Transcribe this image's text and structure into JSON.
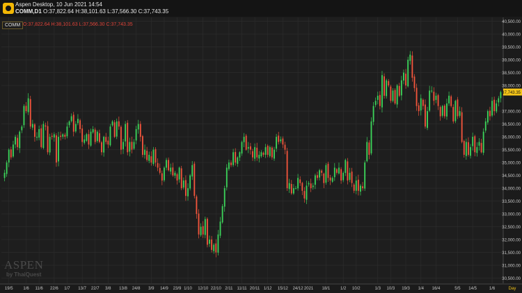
{
  "window": {
    "title": "Aspen Desktop, 10 Jun 2021 14:54",
    "symbol_tf": "COMM,D1",
    "ohlc": "O:37,822.64 H:38,101.63 L:37,566.30 C:37,743.35"
  },
  "badge": {
    "symbol": "COMM",
    "ohlc": "O:37,822.64 H:38,101.63 L:37,566.30 C:37,743.35"
  },
  "watermark": {
    "brand": "ASPEN",
    "by": "by",
    "vendor": "ThaiQuest"
  },
  "colors": {
    "up": "#3cd35a",
    "down": "#f0553c",
    "bg": "#1e1e1e",
    "grid": "#2e2e2e",
    "last": "#f5c518"
  },
  "chart_data": {
    "type": "candlestick",
    "last_price_label": "37,743.35",
    "last_price": 37743.35,
    "ylim": [
      30300,
      40650
    ],
    "y_ticks": [
      {
        "v": 40500,
        "label": "40,500.00"
      },
      {
        "v": 40000,
        "label": "40,000.00"
      },
      {
        "v": 39500,
        "label": "39,500.00"
      },
      {
        "v": 39000,
        "label": "39,000.00"
      },
      {
        "v": 38500,
        "label": "38,500.00"
      },
      {
        "v": 38000,
        "label": "38,000.00"
      },
      {
        "v": 37000,
        "label": "37,000.00"
      },
      {
        "v": 36500,
        "label": "36,500.00"
      },
      {
        "v": 36000,
        "label": "36,000.00"
      },
      {
        "v": 35500,
        "label": "35,500.00"
      },
      {
        "v": 35000,
        "label": "35,000.00"
      },
      {
        "v": 34500,
        "label": "34,500.00"
      },
      {
        "v": 34000,
        "label": "34,000.00"
      },
      {
        "v": 33500,
        "label": "33,500.00"
      },
      {
        "v": 33000,
        "label": "33,000.00"
      },
      {
        "v": 32500,
        "label": "32,500.00"
      },
      {
        "v": 32000,
        "label": "32,000.00"
      },
      {
        "v": 31500,
        "label": "31,500.00"
      },
      {
        "v": 31000,
        "label": "31,000.00"
      },
      {
        "v": 30500,
        "label": "30,500.00"
      }
    ],
    "x_ticks": [
      {
        "label": "19/5",
        "i": 2
      },
      {
        "label": "1/6",
        "i": 10
      },
      {
        "label": "11/6",
        "i": 16
      },
      {
        "label": "22/6",
        "i": 23
      },
      {
        "label": "1/7",
        "i": 29
      },
      {
        "label": "13/7",
        "i": 36
      },
      {
        "label": "22/7",
        "i": 42
      },
      {
        "label": "3/8",
        "i": 48
      },
      {
        "label": "13/8",
        "i": 55
      },
      {
        "label": "24/8",
        "i": 61
      },
      {
        "label": "3/9",
        "i": 68
      },
      {
        "label": "14/9",
        "i": 74
      },
      {
        "label": "23/9",
        "i": 80
      },
      {
        "label": "1/10",
        "i": 85
      },
      {
        "label": "12/10",
        "i": 92
      },
      {
        "label": "22/10",
        "i": 98
      },
      {
        "label": "2/11",
        "i": 104
      },
      {
        "label": "11/11",
        "i": 110
      },
      {
        "label": "20/11",
        "i": 116
      },
      {
        "label": "1/12",
        "i": 122
      },
      {
        "label": "15/12",
        "i": 129
      },
      {
        "label": "24/12",
        "i": 136
      },
      {
        "label": "2021",
        "i": 141
      },
      {
        "label": "18/1",
        "i": 149
      },
      {
        "label": "1/2",
        "i": 157
      },
      {
        "label": "10/2",
        "i": 163
      },
      {
        "label": "1/3",
        "i": 173
      },
      {
        "label": "10/3",
        "i": 179
      },
      {
        "label": "19/3",
        "i": 186
      },
      {
        "label": "1/4",
        "i": 193
      },
      {
        "label": "16/4",
        "i": 200
      },
      {
        "label": "5/5",
        "i": 210
      },
      {
        "label": "14/5",
        "i": 217
      },
      {
        "label": "1/6",
        "i": 226
      }
    ],
    "x_unit": "Day",
    "closes": [
      34600,
      35000,
      35500,
      35200,
      35700,
      36000,
      35600,
      36200,
      36400,
      37200,
      37000,
      37500,
      36400,
      36500,
      36000,
      36000,
      36300,
      35600,
      36500,
      36400,
      35400,
      36000,
      36000,
      36100,
      35000,
      36000,
      36000,
      36100,
      36000,
      36400,
      36600,
      36800,
      36200,
      36500,
      36700,
      36300,
      35800,
      35900,
      36100,
      35700,
      36200,
      36300,
      35800,
      36200,
      35800,
      35400,
      36000,
      35800,
      35700,
      36400,
      36600,
      36000,
      36600,
      36400,
      35500,
      35800,
      36500,
      35400,
      35800,
      35500,
      35800,
      36300,
      36500,
      36000,
      35300,
      35500,
      35100,
      35300,
      35000,
      35500,
      35000,
      34800,
      34600,
      34300,
      34800,
      35100,
      34700,
      34800,
      34500,
      34600,
      34300,
      34800,
      34000,
      34300,
      33700,
      34000,
      34500,
      34900,
      33700,
      33000,
      32200,
      32500,
      32200,
      32800,
      31800,
      32000,
      31600,
      31800,
      31500,
      32200,
      32700,
      33300,
      34000,
      34800,
      35000,
      34900,
      35400,
      35000,
      35200,
      35400,
      35800,
      36000,
      35500,
      35600,
      35500,
      35200,
      35600,
      35200,
      35300,
      35400,
      35300,
      35600,
      35300,
      35600,
      35200,
      35500,
      36000,
      35800,
      35900,
      35700,
      35500,
      34000,
      34200,
      33800,
      34000,
      34000,
      34400,
      34200,
      33900,
      33600,
      34100,
      34200,
      34000,
      34100,
      34500,
      34400,
      34700,
      34600,
      34200,
      34900,
      34400,
      34300,
      34400,
      34800,
      34600,
      34800,
      34300,
      34600,
      35100,
      34300,
      34600,
      34200,
      33900,
      34300,
      33900,
      34100,
      34000,
      35000,
      35800,
      35300,
      36600,
      37200,
      37400,
      37600,
      37200,
      38400,
      37600,
      38200,
      38000,
      37400,
      37800,
      37300,
      38000,
      37600,
      38200,
      38500,
      38000,
      39000,
      39200,
      38300,
      37900,
      37200,
      37000,
      37500,
      37200,
      36400,
      37000,
      37800,
      37800,
      37400,
      37600,
      37200,
      36800,
      37200,
      36800,
      37300,
      37600,
      37200,
      36600,
      37400,
      36800,
      37000,
      35800,
      35300,
      35800,
      35300,
      35600,
      36000,
      35400,
      35600,
      35800,
      35400,
      36200,
      36600,
      37000,
      36800,
      37400,
      37000,
      37300,
      37500,
      37743
    ]
  }
}
